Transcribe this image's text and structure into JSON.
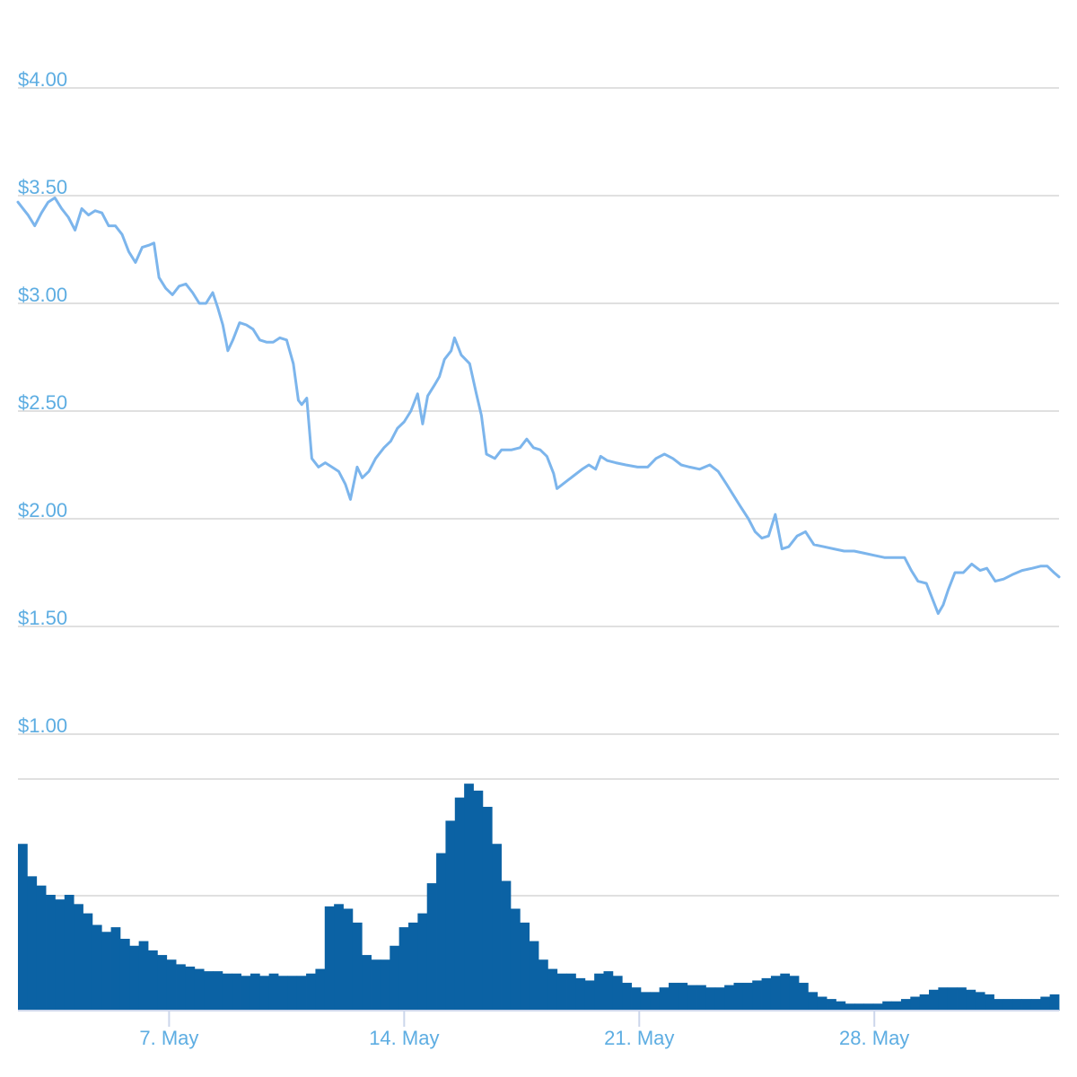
{
  "chart_data": {
    "type": "line",
    "price": {
      "yticks": [
        {
          "value": 1.0,
          "label": "$1.00"
        },
        {
          "value": 1.5,
          "label": "$1.50"
        },
        {
          "value": 2.0,
          "label": "$2.00"
        },
        {
          "value": 2.5,
          "label": "$2.50"
        },
        {
          "value": 3.0,
          "label": "$3.00"
        },
        {
          "value": 3.5,
          "label": "$3.50"
        },
        {
          "value": 4.0,
          "label": "$4.00"
        }
      ],
      "ylim": [
        1.0,
        4.0
      ],
      "xlim": [
        0,
        31
      ],
      "line_color": "#7cb5ec",
      "points": [
        [
          0.0,
          3.47
        ],
        [
          0.15,
          3.44
        ],
        [
          0.3,
          3.41
        ],
        [
          0.5,
          3.36
        ],
        [
          0.7,
          3.42
        ],
        [
          0.9,
          3.47
        ],
        [
          1.1,
          3.49
        ],
        [
          1.3,
          3.44
        ],
        [
          1.5,
          3.4
        ],
        [
          1.7,
          3.34
        ],
        [
          1.9,
          3.44
        ],
        [
          2.1,
          3.41
        ],
        [
          2.3,
          3.43
        ],
        [
          2.5,
          3.42
        ],
        [
          2.7,
          3.36
        ],
        [
          2.9,
          3.36
        ],
        [
          3.1,
          3.32
        ],
        [
          3.3,
          3.24
        ],
        [
          3.5,
          3.19
        ],
        [
          3.7,
          3.26
        ],
        [
          3.9,
          3.27
        ],
        [
          4.05,
          3.28
        ],
        [
          4.2,
          3.12
        ],
        [
          4.4,
          3.07
        ],
        [
          4.6,
          3.04
        ],
        [
          4.8,
          3.08
        ],
        [
          5.0,
          3.09
        ],
        [
          5.2,
          3.05
        ],
        [
          5.4,
          3.0
        ],
        [
          5.6,
          3.0
        ],
        [
          5.8,
          3.05
        ],
        [
          5.95,
          2.98
        ],
        [
          6.1,
          2.9
        ],
        [
          6.25,
          2.78
        ],
        [
          6.4,
          2.83
        ],
        [
          6.6,
          2.91
        ],
        [
          6.8,
          2.9
        ],
        [
          7.0,
          2.88
        ],
        [
          7.2,
          2.83
        ],
        [
          7.4,
          2.82
        ],
        [
          7.6,
          2.82
        ],
        [
          7.8,
          2.84
        ],
        [
          8.0,
          2.83
        ],
        [
          8.2,
          2.72
        ],
        [
          8.35,
          2.55
        ],
        [
          8.45,
          2.53
        ],
        [
          8.6,
          2.56
        ],
        [
          8.75,
          2.28
        ],
        [
          8.95,
          2.24
        ],
        [
          9.15,
          2.26
        ],
        [
          9.35,
          2.24
        ],
        [
          9.55,
          2.22
        ],
        [
          9.75,
          2.16
        ],
        [
          9.9,
          2.09
        ],
        [
          10.1,
          2.24
        ],
        [
          10.25,
          2.19
        ],
        [
          10.45,
          2.22
        ],
        [
          10.65,
          2.28
        ],
        [
          10.9,
          2.33
        ],
        [
          11.1,
          2.36
        ],
        [
          11.3,
          2.42
        ],
        [
          11.5,
          2.45
        ],
        [
          11.7,
          2.5
        ],
        [
          11.9,
          2.58
        ],
        [
          12.05,
          2.44
        ],
        [
          12.2,
          2.57
        ],
        [
          12.4,
          2.62
        ],
        [
          12.55,
          2.66
        ],
        [
          12.7,
          2.74
        ],
        [
          12.9,
          2.78
        ],
        [
          13.0,
          2.84
        ],
        [
          13.2,
          2.76
        ],
        [
          13.45,
          2.72
        ],
        [
          13.65,
          2.58
        ],
        [
          13.8,
          2.48
        ],
        [
          13.95,
          2.3
        ],
        [
          14.2,
          2.28
        ],
        [
          14.4,
          2.32
        ],
        [
          14.7,
          2.32
        ],
        [
          14.95,
          2.33
        ],
        [
          15.15,
          2.37
        ],
        [
          15.35,
          2.33
        ],
        [
          15.55,
          2.32
        ],
        [
          15.75,
          2.29
        ],
        [
          15.95,
          2.21
        ],
        [
          16.05,
          2.14
        ],
        [
          16.3,
          2.17
        ],
        [
          16.55,
          2.2
        ],
        [
          16.8,
          2.23
        ],
        [
          17.0,
          2.25
        ],
        [
          17.2,
          2.23
        ],
        [
          17.35,
          2.29
        ],
        [
          17.55,
          2.27
        ],
        [
          17.8,
          2.26
        ],
        [
          18.1,
          2.25
        ],
        [
          18.45,
          2.24
        ],
        [
          18.75,
          2.24
        ],
        [
          19.0,
          2.28
        ],
        [
          19.25,
          2.3
        ],
        [
          19.5,
          2.28
        ],
        [
          19.75,
          2.25
        ],
        [
          20.0,
          2.24
        ],
        [
          20.3,
          2.23
        ],
        [
          20.6,
          2.25
        ],
        [
          20.85,
          2.22
        ],
        [
          21.1,
          2.16
        ],
        [
          21.3,
          2.11
        ],
        [
          21.5,
          2.06
        ],
        [
          21.75,
          2.0
        ],
        [
          21.95,
          1.94
        ],
        [
          22.15,
          1.91
        ],
        [
          22.35,
          1.92
        ],
        [
          22.55,
          2.02
        ],
        [
          22.75,
          1.86
        ],
        [
          22.95,
          1.87
        ],
        [
          23.2,
          1.92
        ],
        [
          23.45,
          1.94
        ],
        [
          23.7,
          1.88
        ],
        [
          24.0,
          1.87
        ],
        [
          24.3,
          1.86
        ],
        [
          24.6,
          1.85
        ],
        [
          24.9,
          1.85
        ],
        [
          25.2,
          1.84
        ],
        [
          25.5,
          1.83
        ],
        [
          25.8,
          1.82
        ],
        [
          26.1,
          1.82
        ],
        [
          26.4,
          1.82
        ],
        [
          26.6,
          1.76
        ],
        [
          26.8,
          1.71
        ],
        [
          27.05,
          1.7
        ],
        [
          27.25,
          1.62
        ],
        [
          27.4,
          1.56
        ],
        [
          27.55,
          1.6
        ],
        [
          27.7,
          1.67
        ],
        [
          27.9,
          1.75
        ],
        [
          28.15,
          1.75
        ],
        [
          28.4,
          1.79
        ],
        [
          28.65,
          1.76
        ],
        [
          28.85,
          1.77
        ],
        [
          29.1,
          1.71
        ],
        [
          29.35,
          1.72
        ],
        [
          29.6,
          1.74
        ],
        [
          29.9,
          1.76
        ],
        [
          30.2,
          1.77
        ],
        [
          30.45,
          1.78
        ],
        [
          30.65,
          1.78
        ],
        [
          30.85,
          1.75
        ],
        [
          31.0,
          1.73
        ]
      ]
    },
    "volume": {
      "xlim": [
        0,
        31
      ],
      "bar_color": "#0b62a4",
      "values": [
        0.72,
        0.58,
        0.54,
        0.5,
        0.48,
        0.5,
        0.46,
        0.42,
        0.37,
        0.34,
        0.36,
        0.31,
        0.28,
        0.3,
        0.26,
        0.24,
        0.22,
        0.2,
        0.19,
        0.18,
        0.17,
        0.17,
        0.16,
        0.16,
        0.15,
        0.16,
        0.15,
        0.16,
        0.15,
        0.15,
        0.15,
        0.16,
        0.18,
        0.45,
        0.46,
        0.44,
        0.38,
        0.24,
        0.22,
        0.22,
        0.28,
        0.36,
        0.38,
        0.42,
        0.55,
        0.68,
        0.82,
        0.92,
        0.98,
        0.95,
        0.88,
        0.72,
        0.56,
        0.44,
        0.38,
        0.3,
        0.22,
        0.18,
        0.16,
        0.16,
        0.14,
        0.13,
        0.16,
        0.17,
        0.15,
        0.12,
        0.1,
        0.08,
        0.08,
        0.1,
        0.12,
        0.12,
        0.11,
        0.11,
        0.1,
        0.1,
        0.11,
        0.12,
        0.12,
        0.13,
        0.14,
        0.15,
        0.16,
        0.15,
        0.12,
        0.08,
        0.06,
        0.05,
        0.04,
        0.03,
        0.03,
        0.03,
        0.03,
        0.04,
        0.04,
        0.05,
        0.06,
        0.07,
        0.09,
        0.1,
        0.1,
        0.1,
        0.09,
        0.08,
        0.07,
        0.05,
        0.05,
        0.05,
        0.05,
        0.05,
        0.06,
        0.07
      ]
    },
    "x_ticks": [
      {
        "value": 4.5,
        "label": "7. May"
      },
      {
        "value": 11.5,
        "label": "14. May"
      },
      {
        "value": 18.5,
        "label": "21. May"
      },
      {
        "value": 25.5,
        "label": "28. May"
      }
    ],
    "grid": true,
    "legend": "none"
  }
}
